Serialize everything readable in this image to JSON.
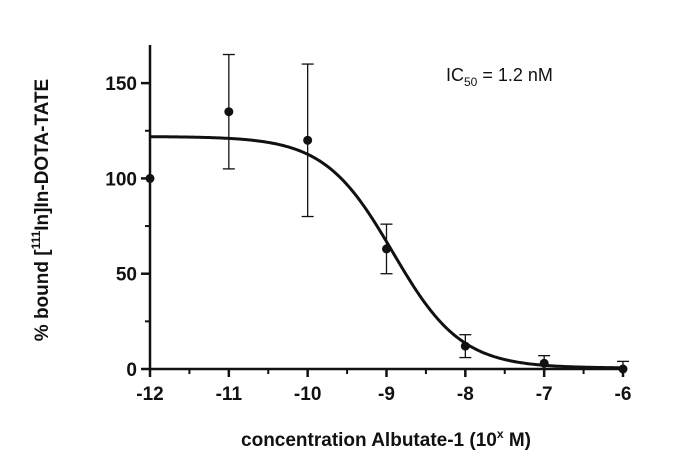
{
  "chart_data": {
    "type": "scatter",
    "title": "",
    "xlabel": {
      "prefix": "concentration Albutate-1 (10",
      "superscript": "x",
      "suffix": " M)"
    },
    "ylabel": {
      "prefix": "% bound [",
      "superscript": "111",
      "suffix": "In]In-DOTA-TATE"
    },
    "annotation": {
      "prefix": "IC",
      "subscript": "50",
      "suffix": " = 1.2 nM"
    },
    "xlim": [
      -12,
      -6
    ],
    "ylim": [
      0,
      170
    ],
    "x_ticks": [
      -12,
      -11,
      -10,
      -9,
      -8,
      -7,
      -6
    ],
    "x_tick_labels": [
      "-12",
      "-11",
      "-10",
      "-9",
      "-8",
      "-7",
      "-6"
    ],
    "y_ticks": [
      0,
      50,
      100,
      150
    ],
    "y_tick_labels": [
      "0",
      "50",
      "100",
      "150"
    ],
    "grid": false,
    "series": [
      {
        "points": [
          {
            "x": -12,
            "y": 100,
            "err": 0
          },
          {
            "x": -11,
            "y": 135,
            "err": 30
          },
          {
            "x": -10,
            "y": 120,
            "err": 40
          },
          {
            "x": -9,
            "y": 63,
            "err": 13
          },
          {
            "x": -8,
            "y": 12,
            "err": 6
          },
          {
            "x": -7,
            "y": 3,
            "err": 4
          },
          {
            "x": -6,
            "y": 0,
            "err": 4
          }
        ]
      }
    ],
    "fit": {
      "type": "sigmoidal dose-response",
      "top": 122,
      "bottom": 0.5,
      "logIC50": -8.92,
      "hill": -1.0
    }
  }
}
